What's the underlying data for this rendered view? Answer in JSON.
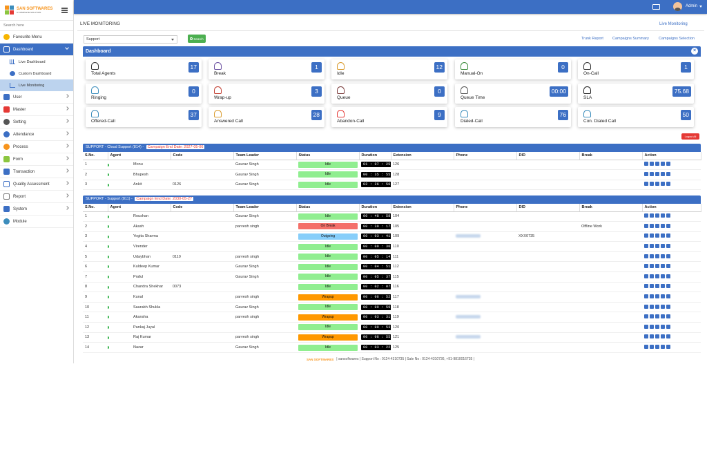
{
  "sidebar": {
    "logo_text": "SAN SOFTWARES",
    "logo_sub": "A COMPLETE SOLUTION",
    "search_placeholder": "Search here",
    "favourite": "Favourite Menu",
    "dashboard": "Dashboard",
    "sub_items": [
      "Live Dashboard",
      "Custom Dashboard",
      "Live Monitoring"
    ],
    "items": [
      "User",
      "Master",
      "Setting",
      "Attendance",
      "Process",
      "Form",
      "Transaction",
      "Quality Assessment",
      "Report",
      "System",
      "Module"
    ]
  },
  "topbar": {
    "admin": "Admin"
  },
  "header": {
    "title": "LIVE MONITORING",
    "crumb": "Live Monitoring",
    "select_value": "Support",
    "search_btn": "Search",
    "links": [
      "Trunk Report",
      "Campaigns Summary",
      "Campaigns Selection"
    ]
  },
  "dashboard": {
    "title": "Dashboard",
    "close": "×",
    "cards": [
      {
        "label": "Total Agents",
        "value": "17",
        "icon": "users-icon"
      },
      {
        "label": "Break",
        "value": "1",
        "icon": "coffee-icon"
      },
      {
        "label": "Idle",
        "value": "12",
        "icon": "hourglass-icon"
      },
      {
        "label": "Manual-On",
        "value": "0",
        "icon": "manual-icon"
      },
      {
        "label": "On-Call",
        "value": "1",
        "icon": "headset-icon"
      },
      {
        "label": "Ringing",
        "value": "0",
        "icon": "phone-ring-icon"
      },
      {
        "label": "Wrap-up",
        "value": "3",
        "icon": "wrap-icon"
      },
      {
        "label": "Queue",
        "value": "0",
        "icon": "queue-icon"
      },
      {
        "label": "Queue Time",
        "value": "00:00",
        "icon": "queue-time-icon"
      },
      {
        "label": "SLA",
        "value": "75.68",
        "icon": "sla-icon"
      },
      {
        "label": "Offered-Call",
        "value": "37",
        "icon": "offered-call-icon"
      },
      {
        "label": "Answered Call",
        "value": "28",
        "icon": "answered-icon"
      },
      {
        "label": "Abandon-Call",
        "value": "9",
        "icon": "abandon-icon"
      },
      {
        "label": "Dialed-Call",
        "value": "76",
        "icon": "dialed-icon"
      },
      {
        "label": "Con. Dialed Call",
        "value": "50",
        "icon": "con-dialed-icon"
      }
    ],
    "logout_all": "Logout All"
  },
  "columns": [
    "S.No.",
    "Agent",
    "Code",
    "Team Leader",
    "Status",
    "Duration",
    "Extension",
    "Phone",
    "DID",
    "Break",
    "Action"
  ],
  "tables": [
    {
      "title": "SUPPORT - Cloud Support (814) -",
      "end_date": "Campaign End Date: 2027-05-06",
      "rows": [
        {
          "sno": "1",
          "agent": "Monu",
          "code": "",
          "tl": "Gaurav Singh",
          "status": "Idle",
          "dur": "01 : 07 : 25",
          "ext": "126",
          "phone": "",
          "did": "",
          "brk": ""
        },
        {
          "sno": "2",
          "agent": "Bhupesh",
          "code": "",
          "tl": "Gaurav Singh",
          "status": "Idle",
          "dur": "00 : 35 : 55",
          "ext": "128",
          "phone": "",
          "did": "",
          "brk": ""
        },
        {
          "sno": "3",
          "agent": "Ankit",
          "code": "0126",
          "tl": "Gaurav Singh",
          "status": "Idle",
          "dur": "02 : 26 : 56",
          "ext": "127",
          "phone": "",
          "did": "",
          "brk": ""
        }
      ]
    },
    {
      "title": "SUPPORT - Support (811) -",
      "end_date": "Campaign End Date: 2030-05-27",
      "rows": [
        {
          "sno": "1",
          "agent": "Roushan",
          "code": "",
          "tl": "Gaurav Singh",
          "status": "Idle",
          "dur": "00 : 48 : 58",
          "ext": "104",
          "phone": "",
          "did": "",
          "brk": ""
        },
        {
          "sno": "2",
          "agent": "Akash",
          "code": "",
          "tl": "parvesh singh",
          "status": "On Break",
          "dur": "00 : 39 : 17",
          "ext": "105",
          "phone": "",
          "did": "",
          "brk": "Offline Work"
        },
        {
          "sno": "3",
          "agent": "Yogita Sharma",
          "code": "",
          "tl": "",
          "status": "Outgoing",
          "dur": "00 : 03 : 41",
          "ext": "109",
          "phone": "blur",
          "did": "XXX0735",
          "brk": ""
        },
        {
          "sno": "4",
          "agent": "Virender",
          "code": "",
          "tl": "",
          "status": "Idle",
          "dur": "00 : 09 : 30",
          "ext": "110",
          "phone": "",
          "did": "",
          "brk": ""
        },
        {
          "sno": "5",
          "agent": "Udaybhan",
          "code": "0110",
          "tl": "parvesh singh",
          "status": "Idle",
          "dur": "00 : 05 : 14",
          "ext": "111",
          "phone": "",
          "did": "",
          "brk": ""
        },
        {
          "sno": "6",
          "agent": "Kuldeep Kumar",
          "code": "",
          "tl": "Gaurav Singh",
          "status": "Idle",
          "dur": "00 : 04 : 51",
          "ext": "112",
          "phone": "",
          "did": "",
          "brk": ""
        },
        {
          "sno": "7",
          "agent": "Praful",
          "code": "",
          "tl": "Gaurav Singh",
          "status": "Idle",
          "dur": "00 : 05 : 37",
          "ext": "115",
          "phone": "",
          "did": "",
          "brk": ""
        },
        {
          "sno": "8",
          "agent": "Chandra Shekhar",
          "code": "0073",
          "tl": "",
          "status": "Idle",
          "dur": "00 : 02 : 07",
          "ext": "116",
          "phone": "",
          "did": "",
          "brk": ""
        },
        {
          "sno": "9",
          "agent": "Kunal",
          "code": "",
          "tl": "parvesh singh",
          "status": "Wrapup",
          "dur": "00 : 06 : 52",
          "ext": "117",
          "phone": "blur",
          "did": "",
          "brk": ""
        },
        {
          "sno": "10",
          "agent": "Saurabh Shukla",
          "code": "",
          "tl": "Gaurav Singh",
          "status": "Idle",
          "dur": "00 : 09 : 59",
          "ext": "118",
          "phone": "",
          "did": "",
          "brk": ""
        },
        {
          "sno": "11",
          "agent": "Akansha",
          "code": "",
          "tl": "parvesh singh",
          "status": "Wrapup",
          "dur": "00 : 03 : 31",
          "ext": "119",
          "phone": "blur",
          "did": "",
          "brk": ""
        },
        {
          "sno": "12",
          "agent": "Pankaj Juyal",
          "code": "",
          "tl": "",
          "status": "Idle",
          "dur": "00 : 09 : 53",
          "ext": "120",
          "phone": "",
          "did": "",
          "brk": ""
        },
        {
          "sno": "13",
          "agent": "Raj Kumar",
          "code": "",
          "tl": "parvesh singh",
          "status": "Wrapup",
          "dur": "00 : 08 : 55",
          "ext": "121",
          "phone": "blur",
          "did": "",
          "brk": ""
        },
        {
          "sno": "14",
          "agent": "Nazar",
          "code": "",
          "tl": "Gaurav Singh",
          "status": "Idle",
          "dur": "00 : 03 : 22",
          "ext": "125",
          "phone": "",
          "did": "",
          "brk": ""
        }
      ]
    }
  ],
  "footer": {
    "logo": "SAN SOFTWARES",
    "text": "| sansoftwares | Support No : 0124-4310735 | Sale No : 0124-4310736, +91-9810016735 |"
  }
}
